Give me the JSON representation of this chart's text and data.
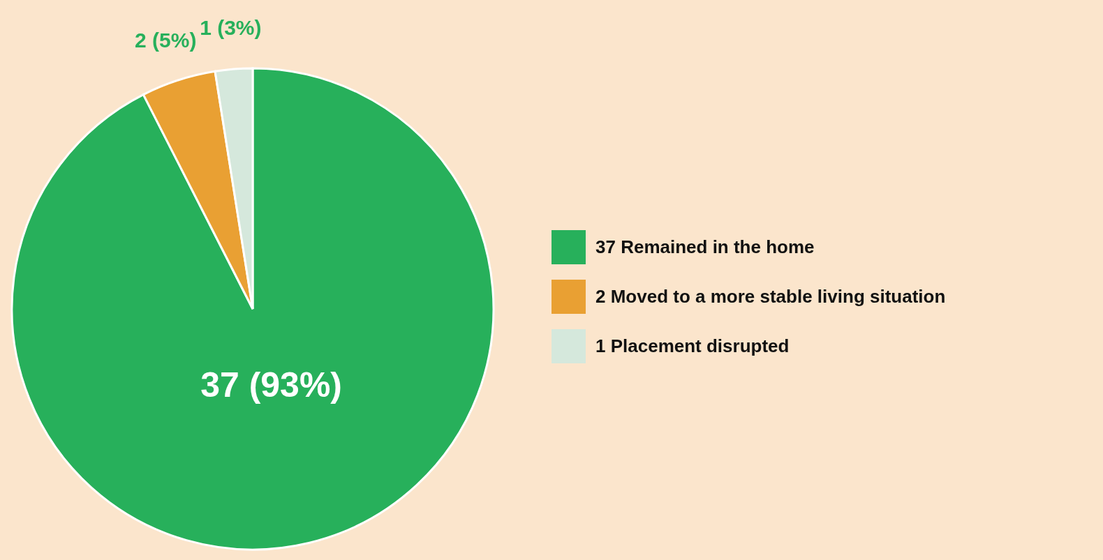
{
  "chart_data": {
    "type": "pie",
    "categories": [
      "37 Remained in the home",
      "2 Moved to a more stable living situation",
      "1 Placement disrupted"
    ],
    "values": [
      37,
      2,
      1
    ],
    "value_labels": [
      "37 (93%)",
      "2 (5%)",
      "1 (3%)"
    ],
    "colors": [
      "#27b05b",
      "#e9a033",
      "#d5e8dc"
    ],
    "legend": "right"
  }
}
